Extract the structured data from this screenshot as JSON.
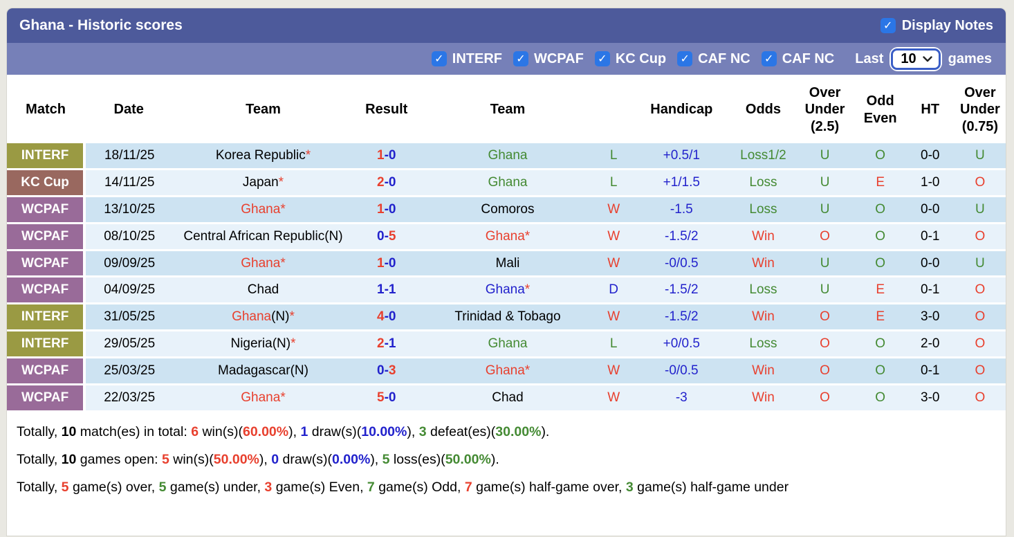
{
  "colors": {
    "red": "#e8402e",
    "green": "#448a33",
    "blue": "#2222cc",
    "black": "#000000",
    "badge_interf": "#9a9a43",
    "badge_kc": "#99685f",
    "badge_wcpaf": "#996b99"
  },
  "header": {
    "title": "Ghana - Historic scores",
    "display_notes_label": "Display Notes",
    "display_notes_checked": true
  },
  "filter_bar": {
    "competitions": [
      {
        "label": "INTERF",
        "checked": true
      },
      {
        "label": "WCPAF",
        "checked": true
      },
      {
        "label": "KC Cup",
        "checked": true
      },
      {
        "label": "CAF NC",
        "checked": true
      },
      {
        "label": "CAF NC",
        "checked": true
      }
    ],
    "last_label": "Last",
    "last_games_value": "10",
    "games_label": "games"
  },
  "table": {
    "columns": [
      {
        "lines": [
          "Match"
        ]
      },
      {
        "lines": [
          "Date"
        ]
      },
      {
        "lines": [
          "Team"
        ]
      },
      {
        "lines": [
          "Result"
        ]
      },
      {
        "lines": [
          "Team"
        ]
      },
      {
        "lines": [
          ""
        ]
      },
      {
        "lines": [
          "Handicap"
        ]
      },
      {
        "lines": [
          "Odds"
        ]
      },
      {
        "lines": [
          "Over",
          "Under",
          "(2.5)"
        ]
      },
      {
        "lines": [
          "Odd",
          "Even"
        ]
      },
      {
        "lines": [
          "HT"
        ]
      },
      {
        "lines": [
          "Over",
          "Under",
          "(0.75)"
        ]
      }
    ],
    "rows": [
      {
        "competition": {
          "label": "INTERF",
          "color": "badge_interf"
        },
        "date": "18/11/25",
        "home": {
          "name": "Korea Republic",
          "suffix": "",
          "star": true,
          "color": "black"
        },
        "score": {
          "left": "1",
          "left_color": "red",
          "dash_color": "blue",
          "right": "0",
          "right_color": "blue"
        },
        "away": {
          "name": "Ghana",
          "suffix": "",
          "star": false,
          "color": "green"
        },
        "outcome": {
          "text": "L",
          "color": "green"
        },
        "handicap": {
          "text": "+0.5/1",
          "color": "blue"
        },
        "odds": {
          "text": "Loss1/2",
          "color": "green"
        },
        "ou25": {
          "text": "U",
          "color": "green"
        },
        "odd_even": {
          "text": "O",
          "color": "green"
        },
        "ht": {
          "text": "0-0",
          "color": "black"
        },
        "ou075": {
          "text": "U",
          "color": "green"
        }
      },
      {
        "competition": {
          "label": "KC Cup",
          "color": "badge_kc"
        },
        "date": "14/11/25",
        "home": {
          "name": "Japan",
          "suffix": "",
          "star": true,
          "color": "black"
        },
        "score": {
          "left": "2",
          "left_color": "red",
          "dash_color": "blue",
          "right": "0",
          "right_color": "blue"
        },
        "away": {
          "name": "Ghana",
          "suffix": "",
          "star": false,
          "color": "green"
        },
        "outcome": {
          "text": "L",
          "color": "green"
        },
        "handicap": {
          "text": "+1/1.5",
          "color": "blue"
        },
        "odds": {
          "text": "Loss",
          "color": "green"
        },
        "ou25": {
          "text": "U",
          "color": "green"
        },
        "odd_even": {
          "text": "E",
          "color": "red"
        },
        "ht": {
          "text": "1-0",
          "color": "black"
        },
        "ou075": {
          "text": "O",
          "color": "red"
        }
      },
      {
        "competition": {
          "label": "WCPAF",
          "color": "badge_wcpaf"
        },
        "date": "13/10/25",
        "home": {
          "name": "Ghana",
          "suffix": "",
          "star": true,
          "color": "red"
        },
        "score": {
          "left": "1",
          "left_color": "red",
          "dash_color": "blue",
          "right": "0",
          "right_color": "blue"
        },
        "away": {
          "name": "Comoros",
          "suffix": "",
          "star": false,
          "color": "black"
        },
        "outcome": {
          "text": "W",
          "color": "red"
        },
        "handicap": {
          "text": "-1.5",
          "color": "blue"
        },
        "odds": {
          "text": "Loss",
          "color": "green"
        },
        "ou25": {
          "text": "U",
          "color": "green"
        },
        "odd_even": {
          "text": "O",
          "color": "green"
        },
        "ht": {
          "text": "0-0",
          "color": "black"
        },
        "ou075": {
          "text": "U",
          "color": "green"
        }
      },
      {
        "competition": {
          "label": "WCPAF",
          "color": "badge_wcpaf"
        },
        "date": "08/10/25",
        "home": {
          "name": "Central African Republic",
          "suffix": "(N)",
          "star": false,
          "color": "black"
        },
        "score": {
          "left": "0",
          "left_color": "blue",
          "dash_color": "blue",
          "right": "5",
          "right_color": "red"
        },
        "away": {
          "name": "Ghana",
          "suffix": "",
          "star": true,
          "color": "red"
        },
        "outcome": {
          "text": "W",
          "color": "red"
        },
        "handicap": {
          "text": "-1.5/2",
          "color": "blue"
        },
        "odds": {
          "text": "Win",
          "color": "red"
        },
        "ou25": {
          "text": "O",
          "color": "red"
        },
        "odd_even": {
          "text": "O",
          "color": "green"
        },
        "ht": {
          "text": "0-1",
          "color": "black"
        },
        "ou075": {
          "text": "O",
          "color": "red"
        }
      },
      {
        "competition": {
          "label": "WCPAF",
          "color": "badge_wcpaf"
        },
        "date": "09/09/25",
        "home": {
          "name": "Ghana",
          "suffix": "",
          "star": true,
          "color": "red"
        },
        "score": {
          "left": "1",
          "left_color": "red",
          "dash_color": "blue",
          "right": "0",
          "right_color": "blue"
        },
        "away": {
          "name": "Mali",
          "suffix": "",
          "star": false,
          "color": "black"
        },
        "outcome": {
          "text": "W",
          "color": "red"
        },
        "handicap": {
          "text": "-0/0.5",
          "color": "blue"
        },
        "odds": {
          "text": "Win",
          "color": "red"
        },
        "ou25": {
          "text": "U",
          "color": "green"
        },
        "odd_even": {
          "text": "O",
          "color": "green"
        },
        "ht": {
          "text": "0-0",
          "color": "black"
        },
        "ou075": {
          "text": "U",
          "color": "green"
        }
      },
      {
        "competition": {
          "label": "WCPAF",
          "color": "badge_wcpaf"
        },
        "date": "04/09/25",
        "home": {
          "name": "Chad",
          "suffix": "",
          "star": false,
          "color": "black"
        },
        "score": {
          "left": "1",
          "left_color": "blue",
          "dash_color": "blue",
          "right": "1",
          "right_color": "blue"
        },
        "away": {
          "name": "Ghana",
          "suffix": "",
          "star": true,
          "color": "blue"
        },
        "outcome": {
          "text": "D",
          "color": "blue"
        },
        "handicap": {
          "text": "-1.5/2",
          "color": "blue"
        },
        "odds": {
          "text": "Loss",
          "color": "green"
        },
        "ou25": {
          "text": "U",
          "color": "green"
        },
        "odd_even": {
          "text": "E",
          "color": "red"
        },
        "ht": {
          "text": "0-1",
          "color": "black"
        },
        "ou075": {
          "text": "O",
          "color": "red"
        }
      },
      {
        "competition": {
          "label": "INTERF",
          "color": "badge_interf"
        },
        "date": "31/05/25",
        "home": {
          "name": "Ghana",
          "suffix": "(N)",
          "star": true,
          "color": "red"
        },
        "score": {
          "left": "4",
          "left_color": "red",
          "dash_color": "blue",
          "right": "0",
          "right_color": "blue"
        },
        "away": {
          "name": "Trinidad & Tobago",
          "suffix": "",
          "star": false,
          "color": "black"
        },
        "outcome": {
          "text": "W",
          "color": "red"
        },
        "handicap": {
          "text": "-1.5/2",
          "color": "blue"
        },
        "odds": {
          "text": "Win",
          "color": "red"
        },
        "ou25": {
          "text": "O",
          "color": "red"
        },
        "odd_even": {
          "text": "E",
          "color": "red"
        },
        "ht": {
          "text": "3-0",
          "color": "black"
        },
        "ou075": {
          "text": "O",
          "color": "red"
        }
      },
      {
        "competition": {
          "label": "INTERF",
          "color": "badge_interf"
        },
        "date": "29/05/25",
        "home": {
          "name": "Nigeria",
          "suffix": "(N)",
          "star": true,
          "color": "black"
        },
        "score": {
          "left": "2",
          "left_color": "red",
          "dash_color": "blue",
          "right": "1",
          "right_color": "blue"
        },
        "away": {
          "name": "Ghana",
          "suffix": "",
          "star": false,
          "color": "green"
        },
        "outcome": {
          "text": "L",
          "color": "green"
        },
        "handicap": {
          "text": "+0/0.5",
          "color": "blue"
        },
        "odds": {
          "text": "Loss",
          "color": "green"
        },
        "ou25": {
          "text": "O",
          "color": "red"
        },
        "odd_even": {
          "text": "O",
          "color": "green"
        },
        "ht": {
          "text": "2-0",
          "color": "black"
        },
        "ou075": {
          "text": "O",
          "color": "red"
        }
      },
      {
        "competition": {
          "label": "WCPAF",
          "color": "badge_wcpaf"
        },
        "date": "25/03/25",
        "home": {
          "name": "Madagascar",
          "suffix": "(N)",
          "star": false,
          "color": "black"
        },
        "score": {
          "left": "0",
          "left_color": "blue",
          "dash_color": "blue",
          "right": "3",
          "right_color": "red"
        },
        "away": {
          "name": "Ghana",
          "suffix": "",
          "star": true,
          "color": "red"
        },
        "outcome": {
          "text": "W",
          "color": "red"
        },
        "handicap": {
          "text": "-0/0.5",
          "color": "blue"
        },
        "odds": {
          "text": "Win",
          "color": "red"
        },
        "ou25": {
          "text": "O",
          "color": "red"
        },
        "odd_even": {
          "text": "O",
          "color": "green"
        },
        "ht": {
          "text": "0-1",
          "color": "black"
        },
        "ou075": {
          "text": "O",
          "color": "red"
        }
      },
      {
        "competition": {
          "label": "WCPAF",
          "color": "badge_wcpaf"
        },
        "date": "22/03/25",
        "home": {
          "name": "Ghana",
          "suffix": "",
          "star": true,
          "color": "red"
        },
        "score": {
          "left": "5",
          "left_color": "red",
          "dash_color": "blue",
          "right": "0",
          "right_color": "blue"
        },
        "away": {
          "name": "Chad",
          "suffix": "",
          "star": false,
          "color": "black"
        },
        "outcome": {
          "text": "W",
          "color": "red"
        },
        "handicap": {
          "text": "-3",
          "color": "blue"
        },
        "odds": {
          "text": "Win",
          "color": "red"
        },
        "ou25": {
          "text": "O",
          "color": "red"
        },
        "odd_even": {
          "text": "O",
          "color": "green"
        },
        "ht": {
          "text": "3-0",
          "color": "black"
        },
        "ou075": {
          "text": "O",
          "color": "red"
        }
      }
    ]
  },
  "summary": {
    "lines": [
      [
        {
          "t": "Totally, ",
          "c": "black",
          "b": false
        },
        {
          "t": "10",
          "c": "black",
          "b": true
        },
        {
          "t": " match(es) in total: ",
          "c": "black",
          "b": false
        },
        {
          "t": "6",
          "c": "red",
          "b": true
        },
        {
          "t": " win(s)(",
          "c": "black",
          "b": false
        },
        {
          "t": "60.00%",
          "c": "red",
          "b": true
        },
        {
          "t": "), ",
          "c": "black",
          "b": false
        },
        {
          "t": "1",
          "c": "blue",
          "b": true
        },
        {
          "t": " draw(s)(",
          "c": "black",
          "b": false
        },
        {
          "t": "10.00%",
          "c": "blue",
          "b": true
        },
        {
          "t": "), ",
          "c": "black",
          "b": false
        },
        {
          "t": "3",
          "c": "green",
          "b": true
        },
        {
          "t": " defeat(es)(",
          "c": "black",
          "b": false
        },
        {
          "t": "30.00%",
          "c": "green",
          "b": true
        },
        {
          "t": ").",
          "c": "black",
          "b": false
        }
      ],
      [
        {
          "t": "Totally, ",
          "c": "black",
          "b": false
        },
        {
          "t": "10",
          "c": "black",
          "b": true
        },
        {
          "t": " games open: ",
          "c": "black",
          "b": false
        },
        {
          "t": "5",
          "c": "red",
          "b": true
        },
        {
          "t": " win(s)(",
          "c": "black",
          "b": false
        },
        {
          "t": "50.00%",
          "c": "red",
          "b": true
        },
        {
          "t": "), ",
          "c": "black",
          "b": false
        },
        {
          "t": "0",
          "c": "blue",
          "b": true
        },
        {
          "t": " draw(s)(",
          "c": "black",
          "b": false
        },
        {
          "t": "0.00%",
          "c": "blue",
          "b": true
        },
        {
          "t": "), ",
          "c": "black",
          "b": false
        },
        {
          "t": "5",
          "c": "green",
          "b": true
        },
        {
          "t": " loss(es)(",
          "c": "black",
          "b": false
        },
        {
          "t": "50.00%",
          "c": "green",
          "b": true
        },
        {
          "t": ").",
          "c": "black",
          "b": false
        }
      ],
      [
        {
          "t": "Totally, ",
          "c": "black",
          "b": false
        },
        {
          "t": "5",
          "c": "red",
          "b": true
        },
        {
          "t": " game(s) over, ",
          "c": "black",
          "b": false
        },
        {
          "t": "5",
          "c": "green",
          "b": true
        },
        {
          "t": " game(s) under, ",
          "c": "black",
          "b": false
        },
        {
          "t": "3",
          "c": "red",
          "b": true
        },
        {
          "t": " game(s) Even, ",
          "c": "black",
          "b": false
        },
        {
          "t": "7",
          "c": "green",
          "b": true
        },
        {
          "t": " game(s) Odd, ",
          "c": "black",
          "b": false
        },
        {
          "t": "7",
          "c": "red",
          "b": true
        },
        {
          "t": " game(s) half-game over, ",
          "c": "black",
          "b": false
        },
        {
          "t": "3",
          "c": "green",
          "b": true
        },
        {
          "t": " game(s) half-game under",
          "c": "black",
          "b": false
        }
      ]
    ]
  }
}
